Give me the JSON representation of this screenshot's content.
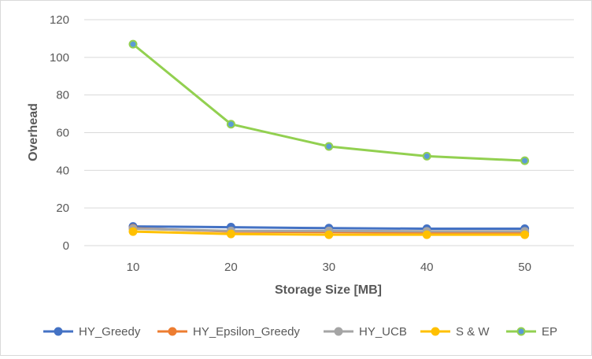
{
  "chart_data": {
    "type": "line",
    "title": "",
    "xlabel": "Storage Size [MB]",
    "ylabel": "Overhead",
    "x": [
      10,
      20,
      30,
      40,
      50
    ],
    "x_tick_labels": [
      "10",
      "20",
      "30",
      "40",
      "50"
    ],
    "ylim": [
      0,
      120
    ],
    "y_ticks": [
      0,
      20,
      40,
      60,
      80,
      100,
      120
    ],
    "y_tick_labels": [
      "0",
      "20",
      "40",
      "60",
      "80",
      "100",
      "120"
    ],
    "grid": "horizontal",
    "legend": "bottom",
    "series": [
      {
        "name": "HY_Greedy",
        "color": "#4472c4",
        "values": [
          10.2,
          9.8,
          9.3,
          9.0,
          9.0
        ]
      },
      {
        "name": "HY_Epsilon_Greedy",
        "color": "#ed7d31",
        "values": [
          9.2,
          7.5,
          7.2,
          7.0,
          7.0
        ]
      },
      {
        "name": "HY_UCB",
        "color": "#a5a5a5",
        "values": [
          9.0,
          7.8,
          7.8,
          7.6,
          7.6
        ]
      },
      {
        "name": "S & W",
        "color": "#ffc000",
        "values": [
          7.5,
          6.2,
          5.8,
          5.8,
          5.8
        ]
      },
      {
        "name": "EP",
        "color": "#92d050",
        "marker_fill": "#5b9bd5",
        "values": [
          107,
          64.5,
          52.7,
          47.5,
          45.1
        ]
      }
    ]
  }
}
